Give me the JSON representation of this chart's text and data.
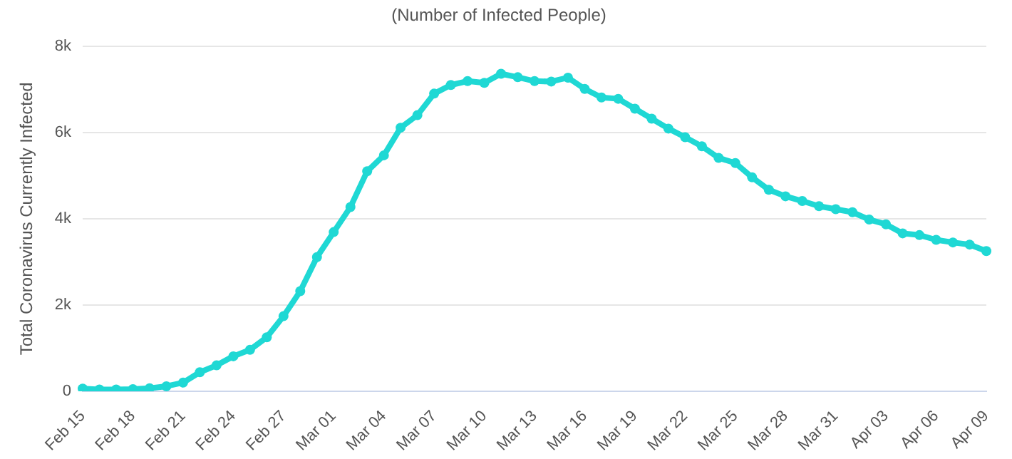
{
  "chart_data": {
    "type": "line",
    "title": "(Number of Infected People)",
    "ylabel": "Total Coronavirus Currently Infected",
    "categories": [
      "Feb 15",
      null,
      null,
      "Feb 18",
      null,
      null,
      "Feb 21",
      null,
      null,
      "Feb 24",
      null,
      null,
      "Feb 27",
      null,
      null,
      "Mar 01",
      null,
      null,
      "Mar 04",
      null,
      null,
      "Mar 07",
      null,
      null,
      "Mar 10",
      null,
      null,
      "Mar 13",
      null,
      null,
      "Mar 16",
      null,
      null,
      "Mar 19",
      null,
      null,
      "Mar 22",
      null,
      null,
      "Mar 25",
      null,
      null,
      "Mar 28",
      null,
      null,
      "Mar 31",
      null,
      null,
      "Apr 03",
      null,
      null,
      "Apr 06",
      null,
      null,
      "Apr 09"
    ],
    "series": [
      {
        "color": "#1fd8d4",
        "values": [
          60,
          40,
          40,
          50,
          70,
          115,
          200,
          440,
          600,
          810,
          960,
          1250,
          1740,
          2320,
          3110,
          3690,
          4270,
          5100,
          5470,
          6110,
          6400,
          6900,
          7100,
          7190,
          7150,
          7360,
          7280,
          7190,
          7180,
          7270,
          7010,
          6810,
          6780,
          6550,
          6320,
          6090,
          5890,
          5680,
          5410,
          5290,
          4960,
          4670,
          4520,
          4410,
          4290,
          4220,
          4150,
          3980,
          3870,
          3660,
          3620,
          3510,
          3450,
          3400,
          3250
        ]
      }
    ],
    "ylim": [
      0,
      8000
    ],
    "yticks": [
      {
        "value": 0,
        "label": "0"
      },
      {
        "value": 2000,
        "label": "2k"
      },
      {
        "value": 4000,
        "label": "4k"
      },
      {
        "value": 6000,
        "label": "6k"
      },
      {
        "value": 8000,
        "label": "8k"
      }
    ],
    "grid": "y",
    "legend": false,
    "marker": "circle",
    "line_style": "solid"
  }
}
